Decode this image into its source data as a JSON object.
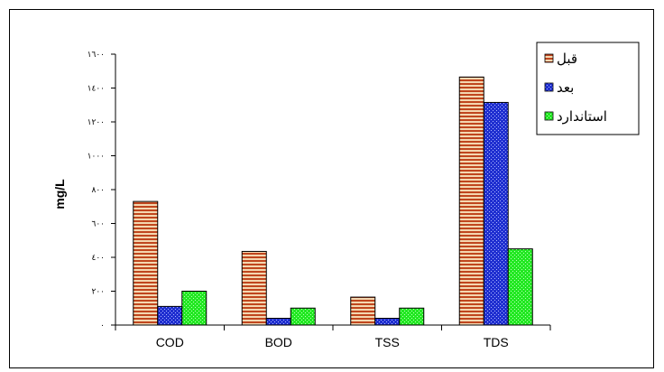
{
  "chart_data": {
    "type": "bar",
    "title": "",
    "xlabel": "",
    "ylabel": "mg/L",
    "ylim": [
      0,
      1600
    ],
    "y_ticks": [
      0,
      200,
      400,
      600,
      800,
      1000,
      1200,
      1400,
      1600
    ],
    "y_tick_labels": [
      "٠",
      "٢٠٠",
      "٤٠٠",
      "٦٠٠",
      "٨٠٠",
      "١٠٠٠",
      "١٢٠٠",
      "١٤٠٠",
      "١٦٠٠"
    ],
    "categories": [
      "COD",
      "BOD",
      "TSS",
      "TDS"
    ],
    "series": [
      {
        "name": "قبل",
        "values": [
          730,
          435,
          165,
          1465
        ],
        "color": "#c0461e",
        "pattern": "horizontal-lines"
      },
      {
        "name": "بعد",
        "values": [
          110,
          40,
          40,
          1315
        ],
        "color": "#1f2fd0",
        "pattern": "dots"
      },
      {
        "name": "استاندارد",
        "values": [
          200,
          100,
          100,
          450
        ],
        "color": "#22e822",
        "pattern": "dots"
      }
    ],
    "legend_position": "top-right",
    "grid": false
  }
}
